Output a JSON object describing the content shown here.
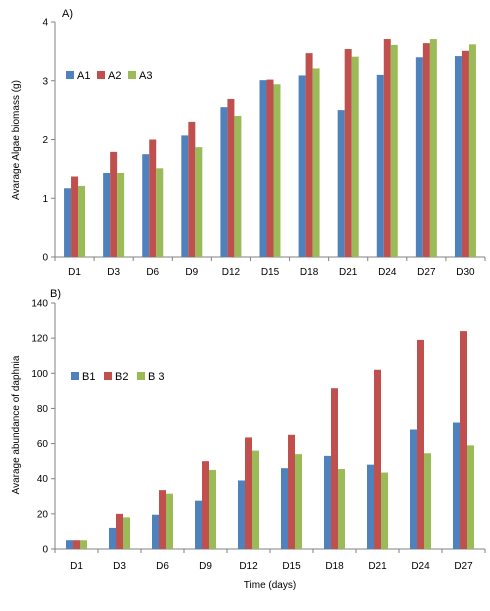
{
  "colors": {
    "blue": "#4F81BD",
    "red": "#C0504D",
    "green": "#9BBB59",
    "axis": "#808080"
  },
  "chart_data": [
    {
      "type": "bar",
      "panel_label": "A)",
      "ylabel": "Avarage Algae biomass (g)",
      "xlabel": "",
      "ylim": [
        0,
        4
      ],
      "yticks": [
        0,
        1,
        2,
        3,
        4
      ],
      "grid": false,
      "legend": "top-left",
      "categories": [
        "D1",
        "D3",
        "D6",
        "D9",
        "D12",
        "D15",
        "D18",
        "D21",
        "D24",
        "D27",
        "D30"
      ],
      "series": [
        {
          "name": "A1",
          "color": "#4F81BD",
          "values": [
            1.17,
            1.43,
            1.75,
            2.07,
            2.55,
            3.01,
            3.09,
            2.5,
            3.1,
            3.4,
            3.42
          ]
        },
        {
          "name": "A2",
          "color": "#C0504D",
          "values": [
            1.37,
            1.79,
            2.0,
            2.3,
            2.69,
            3.02,
            3.47,
            3.54,
            3.71,
            3.64,
            3.51
          ]
        },
        {
          "name": "A3",
          "color": "#9BBB59",
          "values": [
            1.21,
            1.43,
            1.51,
            1.87,
            2.4,
            2.94,
            3.21,
            3.41,
            3.61,
            3.71,
            3.62
          ]
        }
      ]
    },
    {
      "type": "bar",
      "panel_label": "B)",
      "ylabel": "Avarage abundance of daphnia",
      "xlabel": "Time (days)",
      "ylim": [
        0,
        140
      ],
      "yticks": [
        0,
        20,
        40,
        60,
        80,
        100,
        120,
        140
      ],
      "grid": false,
      "legend": "top-left",
      "categories": [
        "D1",
        "D3",
        "D6",
        "D9",
        "D12",
        "D15",
        "D18",
        "D21",
        "D24",
        "D27"
      ],
      "series": [
        {
          "name": "B1",
          "color": "#4F81BD",
          "values": [
            5,
            12,
            19.5,
            27.5,
            39,
            46,
            53,
            48,
            68,
            72
          ]
        },
        {
          "name": "B2",
          "color": "#C0504D",
          "values": [
            5,
            20,
            33.5,
            50,
            63.5,
            65,
            91.5,
            102,
            119,
            124
          ]
        },
        {
          "name": "B 3",
          "color": "#9BBB59",
          "values": [
            5,
            18,
            31.5,
            45,
            56,
            54,
            45.5,
            43.5,
            54.5,
            59
          ]
        }
      ]
    }
  ]
}
